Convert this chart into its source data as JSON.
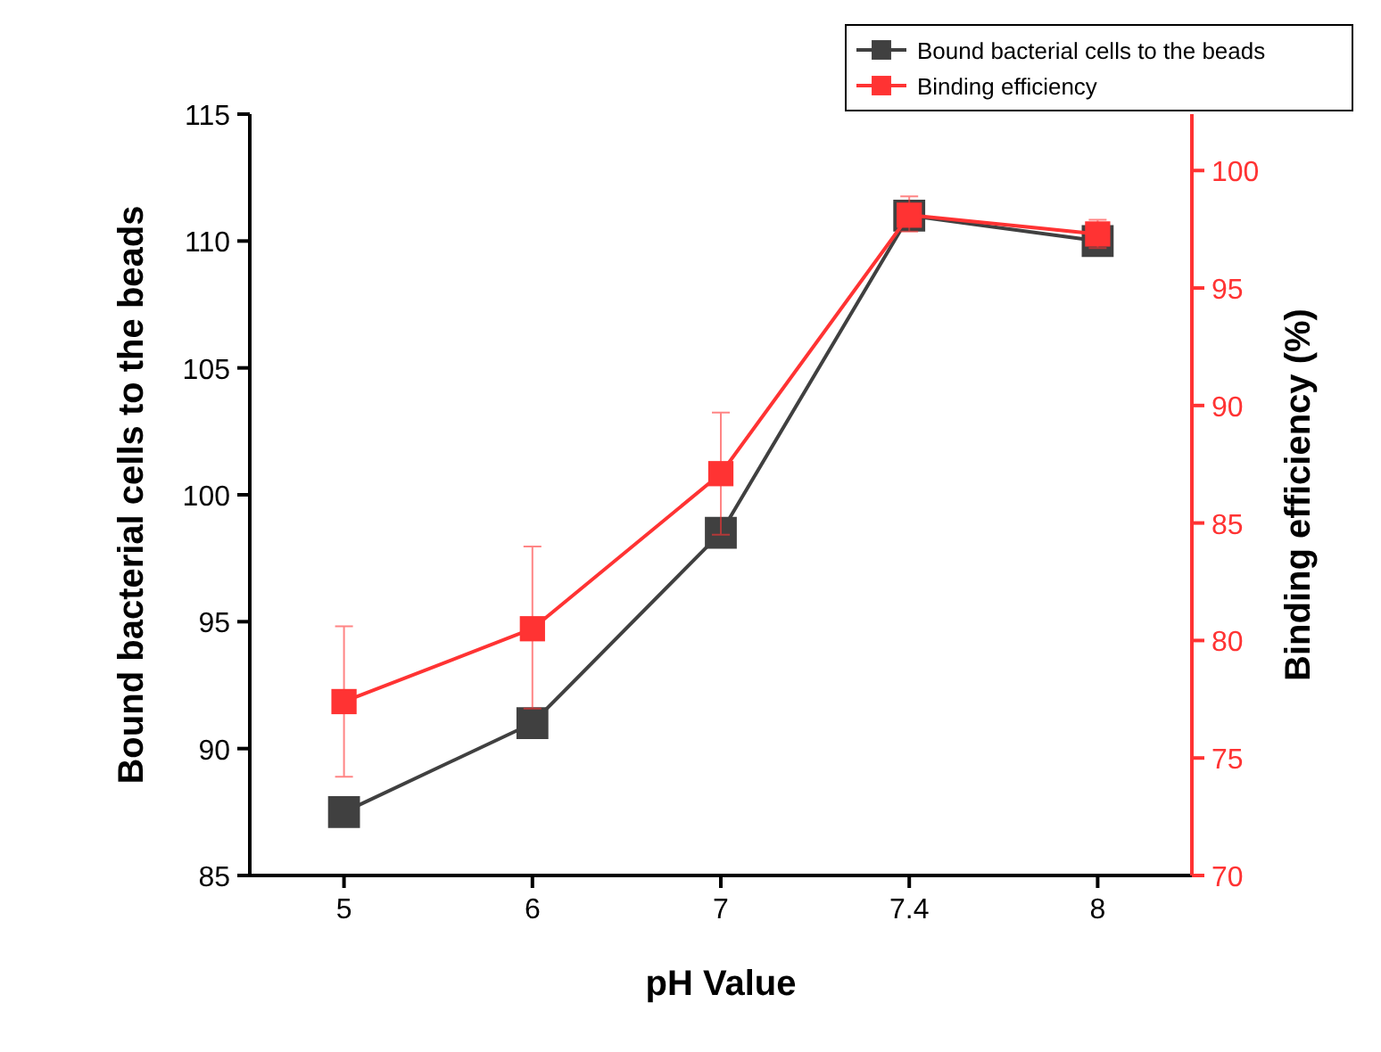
{
  "chart_data": {
    "type": "line",
    "xlabel": "pH Value",
    "ylabel": "Bound bacterial cells to the beads",
    "y2label": "Binding efficiency (%)",
    "categories": [
      "5",
      "6",
      "7",
      "7.4",
      "8"
    ],
    "ylim": [
      85,
      115
    ],
    "yticks": [
      85,
      90,
      95,
      100,
      105,
      110,
      115
    ],
    "y2lim": [
      70,
      102.4
    ],
    "y2ticks": [
      70,
      75,
      80,
      85,
      90,
      95,
      100
    ],
    "marker": "square",
    "legend": "top right",
    "grid": false,
    "series": [
      {
        "name": "Bound bacterial cells to the beads",
        "color": "#404040",
        "values": [
          87.5,
          91,
          98.5,
          111,
          110
        ]
      },
      {
        "name": "Binding efficiency",
        "color": "#ff3333",
        "axis": "y2",
        "values": [
          77.4,
          80.5,
          87.1,
          98.1,
          97.3
        ],
        "errors": [
          [
            74.2,
            80.6
          ],
          [
            77.1,
            84
          ],
          [
            84.5,
            89.7
          ],
          [
            97.4,
            98.9
          ],
          [
            96.7,
            97.9
          ]
        ]
      }
    ]
  }
}
